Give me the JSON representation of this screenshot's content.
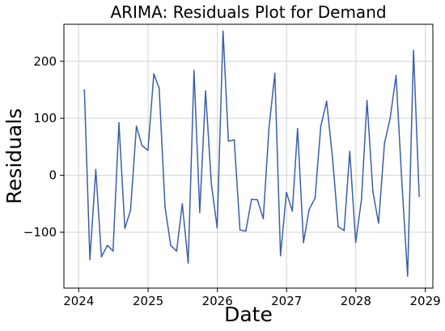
{
  "chart_data": {
    "type": "line",
    "title": "ARIMA: Residuals Plot for Demand",
    "xlabel": "Date",
    "ylabel": "Residuals",
    "xlim": [
      "2023-10-15",
      "2029-02-10"
    ],
    "ylim": [
      -198,
      265
    ],
    "xticks": [
      {
        "label": "2024",
        "date": "2024-01-01"
      },
      {
        "label": "2025",
        "date": "2025-01-01"
      },
      {
        "label": "2026",
        "date": "2026-01-01"
      },
      {
        "label": "2027",
        "date": "2027-01-01"
      },
      {
        "label": "2028",
        "date": "2028-01-01"
      },
      {
        "label": "2029",
        "date": "2029-01-01"
      }
    ],
    "yticks": [
      {
        "label": "−100",
        "value": -100
      },
      {
        "label": "0",
        "value": 0
      },
      {
        "label": "100",
        "value": 100
      },
      {
        "label": "200",
        "value": 200
      }
    ],
    "grid": true,
    "color": "#3a5fa6",
    "series": [
      {
        "x": [
          "2024-01-31",
          "2024-02-29",
          "2024-03-31",
          "2024-04-30",
          "2024-05-31",
          "2024-06-30",
          "2024-07-31",
          "2024-08-31",
          "2024-09-30",
          "2024-10-31",
          "2024-11-30",
          "2024-12-31",
          "2025-01-31",
          "2025-02-28",
          "2025-03-31",
          "2025-04-30",
          "2025-05-31",
          "2025-06-30",
          "2025-07-31",
          "2025-08-31",
          "2025-09-30",
          "2025-10-31",
          "2025-11-30",
          "2025-12-31",
          "2026-01-31",
          "2026-02-28",
          "2026-03-31",
          "2026-04-30",
          "2026-05-31",
          "2026-06-30",
          "2026-07-31",
          "2026-08-31",
          "2026-09-30",
          "2026-10-31",
          "2026-11-30",
          "2026-12-31",
          "2027-01-31",
          "2027-02-28",
          "2027-03-31",
          "2027-04-30",
          "2027-05-31",
          "2027-06-30",
          "2027-07-31",
          "2027-08-31",
          "2027-09-30",
          "2027-10-31",
          "2027-11-30",
          "2027-12-31",
          "2028-01-31",
          "2028-02-29",
          "2028-03-31",
          "2028-04-30",
          "2028-05-31",
          "2028-06-30",
          "2028-07-31",
          "2028-08-31",
          "2028-09-30",
          "2028-10-31",
          "2028-11-30",
          "2028-12-31"
        ],
        "values": [
          150,
          -148,
          10,
          -143,
          -123,
          -133,
          92,
          -93,
          -62,
          86,
          52,
          44,
          178,
          153,
          -56,
          -123,
          -133,
          -50,
          -154,
          184,
          -65,
          148,
          -15,
          -92,
          253,
          60,
          62,
          -96,
          -98,
          -42,
          -43,
          -76,
          82,
          179,
          -141,
          -30,
          -63,
          82,
          -118,
          -60,
          -40,
          85,
          130,
          30,
          -90,
          -97,
          42,
          -118,
          -42,
          131,
          -29,
          -84,
          56,
          100,
          175,
          -15,
          -177,
          219,
          -37,
          null
        ]
      }
    ]
  }
}
